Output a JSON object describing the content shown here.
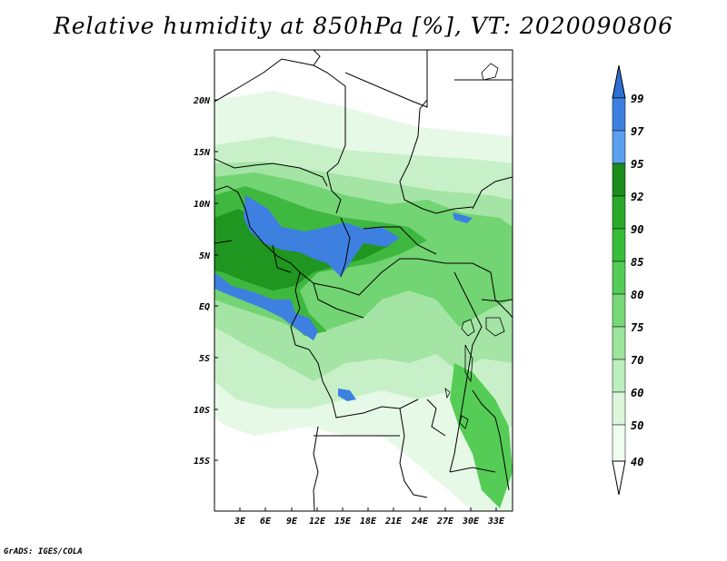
{
  "title": "Relative humidity at 850hPa [%], VT: 2020090806",
  "credit": "GrADS: IGES/COLA",
  "map": {
    "lat_labels": [
      "20N",
      "15N",
      "10N",
      "5N",
      "EQ",
      "5S",
      "10S",
      "15S"
    ],
    "lon_labels": [
      "3E",
      "6E",
      "9E",
      "12E",
      "15E",
      "18E",
      "21E",
      "24E",
      "27E",
      "30E",
      "33E"
    ]
  },
  "colorbar": {
    "levels": [
      "99",
      "97",
      "95",
      "92",
      "90",
      "85",
      "80",
      "75",
      "70",
      "60",
      "50",
      "40"
    ],
    "colors": {
      "above99": "#2e6fd4",
      "97_99": "#3d80e0",
      "95_97": "#5aa0ee",
      "92_95": "#1c8c1c",
      "90_92": "#2aa82a",
      "85_90": "#38bd38",
      "80_85": "#55cc55",
      "75_80": "#78d878",
      "70_75": "#9be49b",
      "60_70": "#bdeebd",
      "50_60": "#dbf6db",
      "40_50": "#f0fcf0",
      "below40": "#ffffff"
    }
  }
}
